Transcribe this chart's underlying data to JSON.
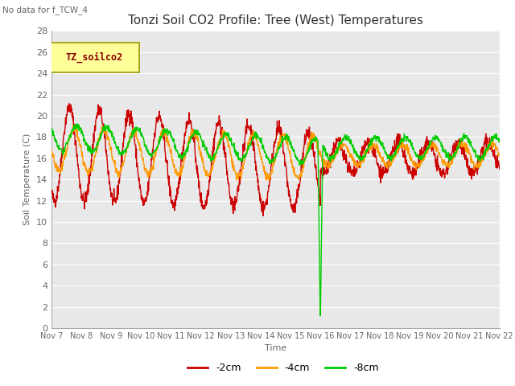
{
  "title": "Tonzi Soil CO2 Profile: Tree (West) Temperatures",
  "no_data_text": "No data for f_TCW_4",
  "ylabel": "Soil Temperature (C)",
  "xlabel": "Time",
  "legend_box_label": "TZ_soilco2",
  "ylim": [
    0,
    28
  ],
  "yticks": [
    0,
    2,
    4,
    6,
    8,
    10,
    12,
    14,
    16,
    18,
    20,
    22,
    24,
    26,
    28
  ],
  "xtick_labels": [
    "Nov 7",
    "Nov 8",
    "Nov 9",
    "Nov 10",
    "Nov 11",
    "Nov 12",
    "Nov 13",
    "Nov 14",
    "Nov 15",
    "Nov 16",
    "Nov 17",
    "Nov 18",
    "Nov 19",
    "Nov 20",
    "Nov 21",
    "Nov 22"
  ],
  "colors": {
    "minus2cm": "#cc0000",
    "minus4cm": "#ff9900",
    "minus8cm": "#00cc00",
    "background": "#e8e8e8",
    "grid": "#ffffff",
    "legend_box_bg": "#ffff99",
    "legend_box_border": "#999900",
    "legend_box_text": "#880000"
  },
  "line_width": 1.0,
  "fig_width": 6.4,
  "fig_height": 4.8,
  "dpi": 100
}
